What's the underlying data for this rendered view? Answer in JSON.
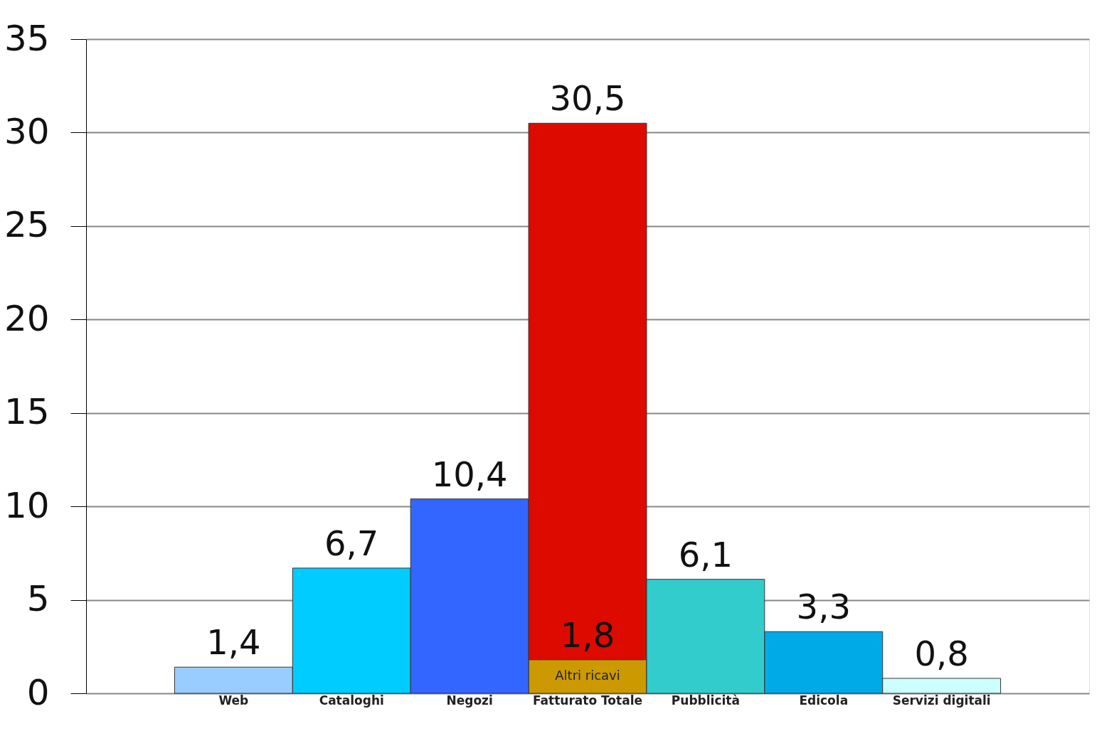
{
  "chart_data": {
    "type": "bar",
    "stacked": true,
    "categories": [
      "Web",
      "Cataloghi",
      "Negozi",
      "Fatturato Totale",
      "Pubblicità",
      "Edicola",
      "Servizi digitali"
    ],
    "series": [
      {
        "name": "Altri ricavi",
        "color": "#cc9900",
        "values": [
          null,
          null,
          null,
          1.8,
          null,
          null,
          null
        ],
        "value_labels": [
          null,
          null,
          null,
          "1,8",
          null,
          null,
          null
        ]
      },
      {
        "colors": [
          "#99ccff",
          "#00ccff",
          "#3366ff",
          "#dd0a00",
          "#33cccc",
          "#00aae6",
          "#ccffff"
        ],
        "values": [
          1.4,
          6.7,
          10.4,
          28.7,
          6.1,
          3.3,
          0.8
        ],
        "value_labels": [
          "1,4",
          "6,7",
          "10,4",
          null,
          "6,1",
          "3,3",
          "0,8"
        ]
      }
    ],
    "totals": [
      null,
      null,
      null,
      "30,5",
      null,
      null,
      null
    ],
    "ylim": [
      0,
      35
    ],
    "yticks": [
      0,
      5,
      10,
      15,
      20,
      25,
      30,
      35
    ],
    "grid": "y"
  }
}
